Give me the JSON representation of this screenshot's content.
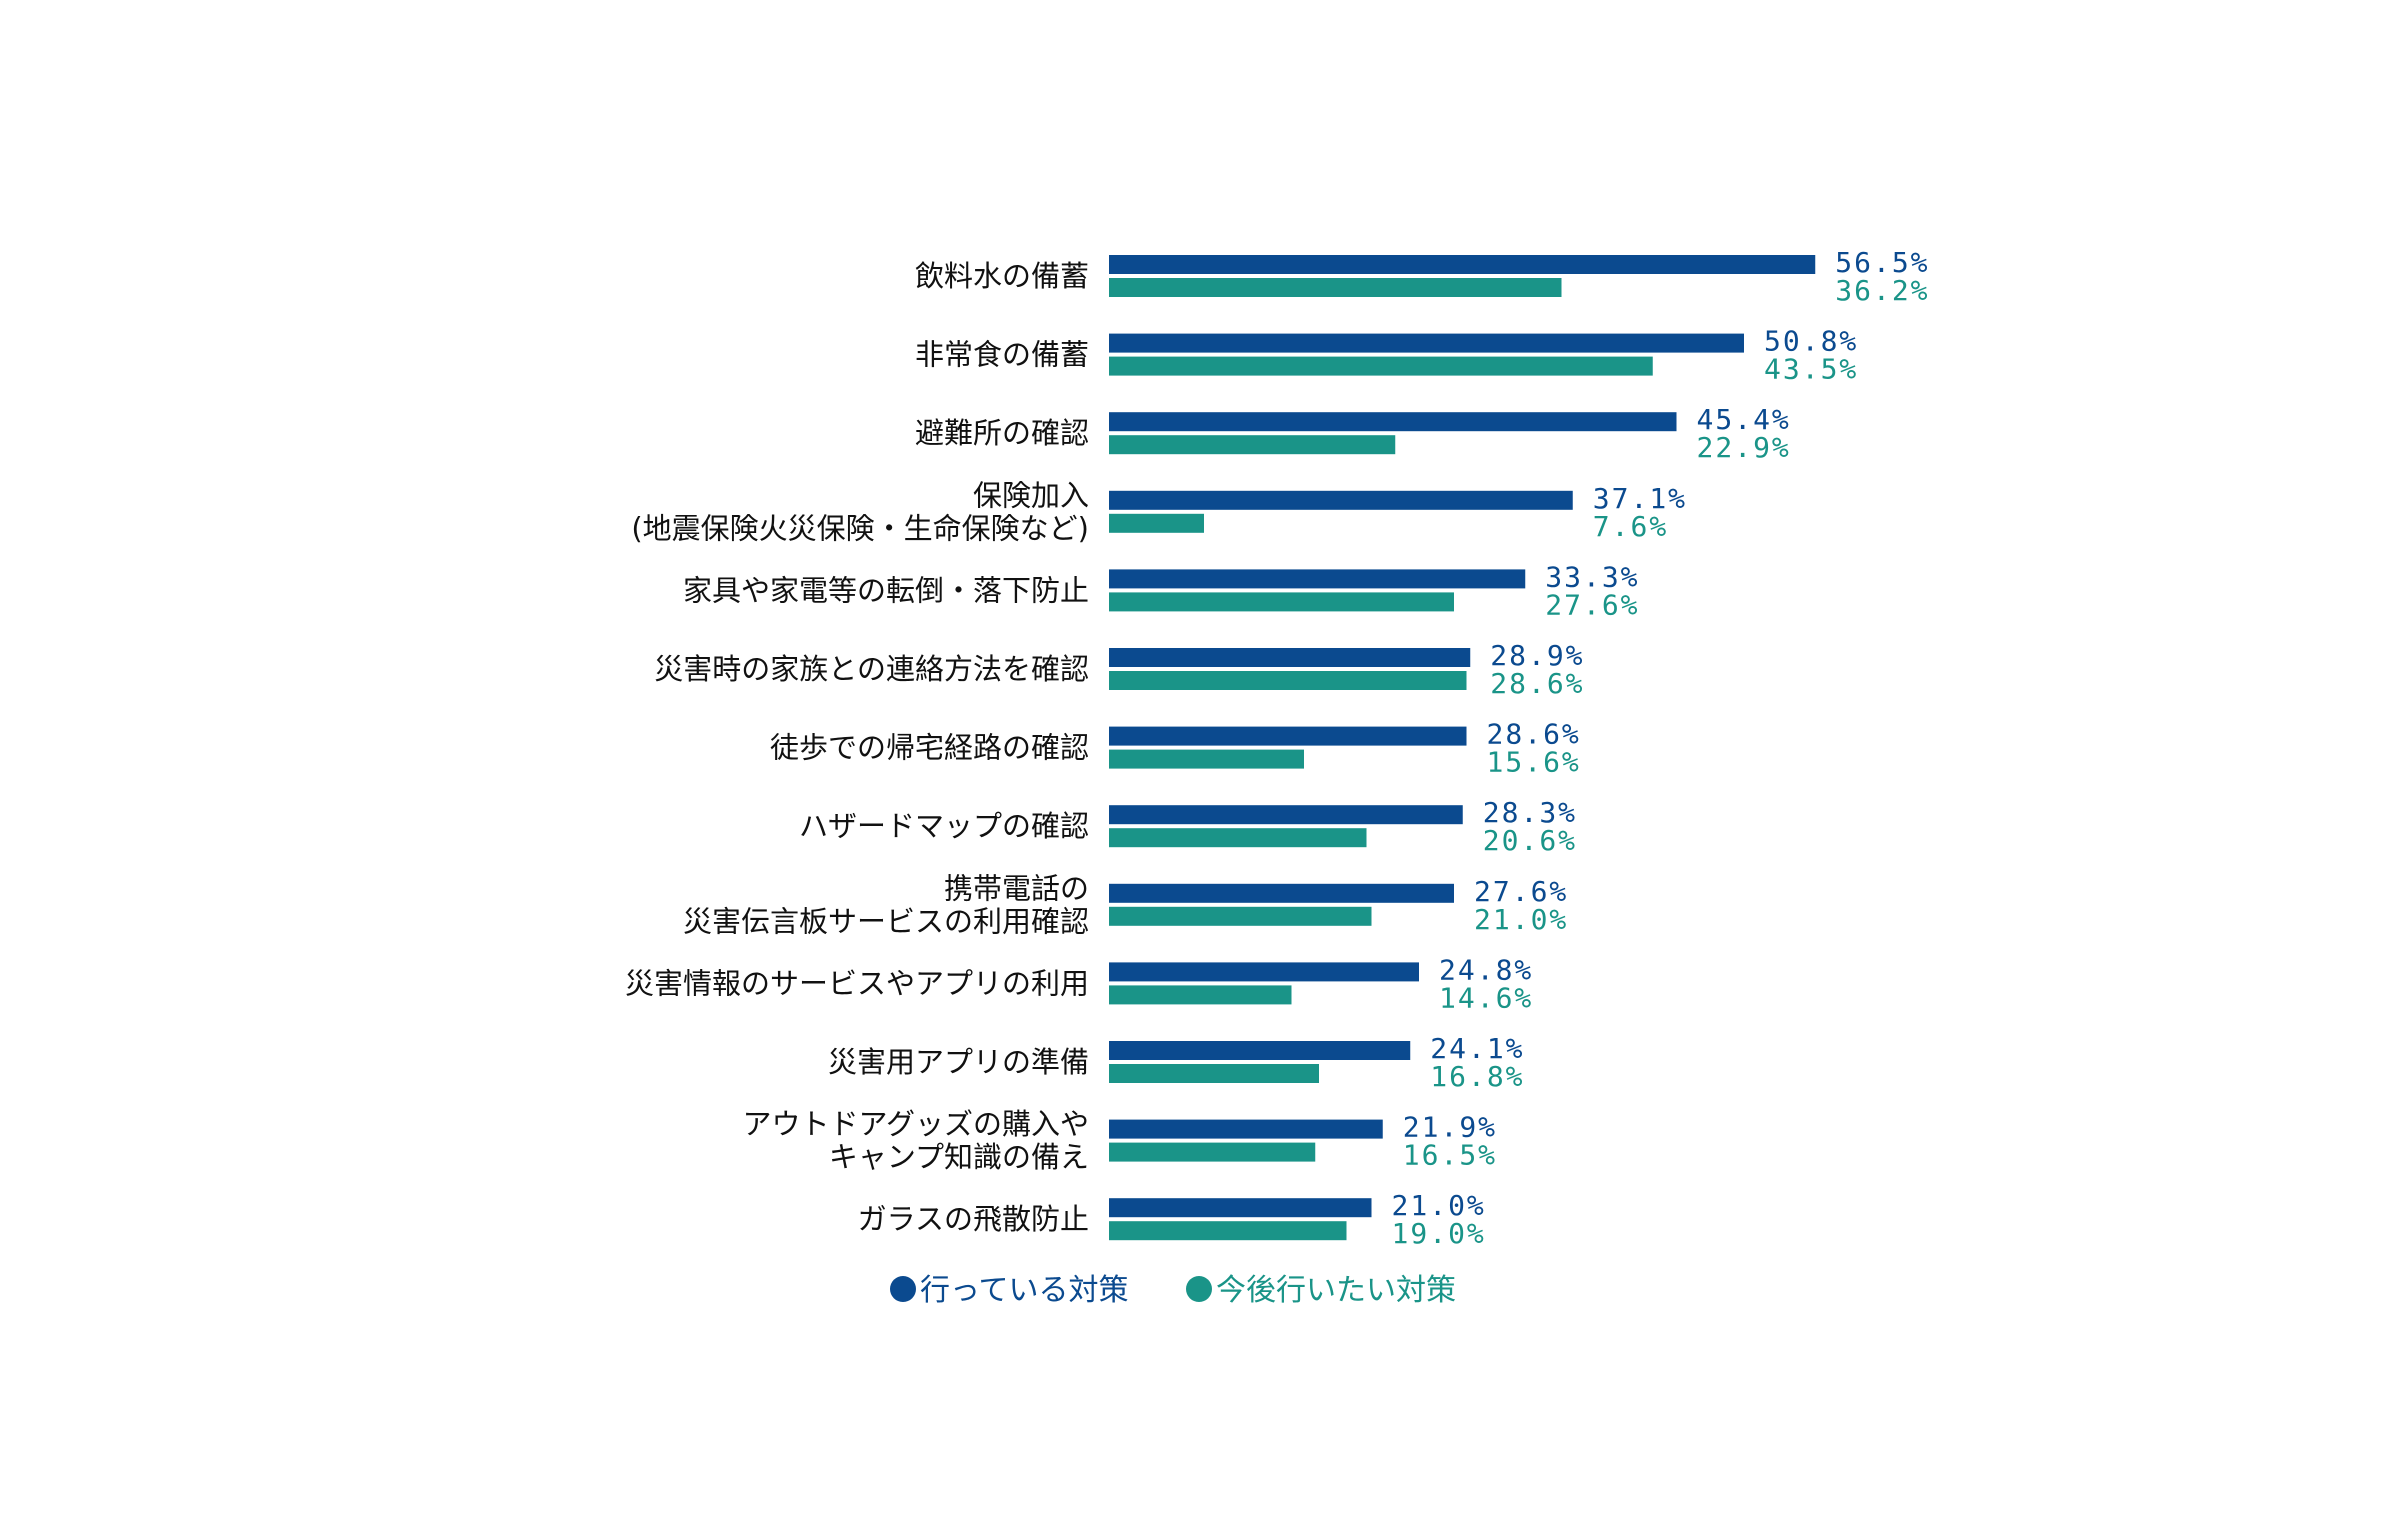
{
  "chart_data": {
    "type": "bar",
    "orientation": "horizontal",
    "categories": [
      [
        "飲料水の備蓄"
      ],
      [
        "非常食の備蓄"
      ],
      [
        "避難所の確認"
      ],
      [
        "保険加入",
        "(地震保険火災保険・生命保険など)"
      ],
      [
        "家具や家電等の転倒・落下防止"
      ],
      [
        "災害時の家族との連絡方法を確認"
      ],
      [
        "徒歩での帰宅経路の確認"
      ],
      [
        "ハザードマップの確認"
      ],
      [
        "携帯電話の",
        "災害伝言板サービスの利用確認"
      ],
      [
        "災害情報のサービスやアプリの利用"
      ],
      [
        "災害用アプリの準備"
      ],
      [
        "アウトドアグッズの購入や",
        "キャンプ知識の備え"
      ],
      [
        "ガラスの飛散防止"
      ]
    ],
    "series": [
      {
        "name": "行っている対策",
        "color": "#0b4a8f",
        "values": [
          56.5,
          50.8,
          45.4,
          37.1,
          33.3,
          28.9,
          28.6,
          28.3,
          27.6,
          24.8,
          24.1,
          21.9,
          21.0
        ],
        "labels": [
          "56.5%",
          "50.8%",
          "45.4%",
          "37.1%",
          "33.3%",
          "28.9%",
          "28.6%",
          "28.3%",
          "27.6%",
          "24.8%",
          "24.1%",
          "21.9%",
          "21.0%"
        ]
      },
      {
        "name": "今後行いたい対策",
        "color": "#1a9488",
        "values": [
          36.2,
          43.5,
          22.9,
          7.6,
          27.6,
          28.6,
          15.6,
          20.6,
          21.0,
          14.6,
          16.8,
          16.5,
          19.0
        ],
        "labels": [
          "36.2%",
          "43.5%",
          "22.9%",
          "7.6%",
          "27.6%",
          "28.6%",
          "15.6%",
          "20.6%",
          "21.0%",
          "14.6%",
          "16.8%",
          "16.5%",
          "19.0%"
        ]
      }
    ],
    "unit": "%",
    "xlim": [
      0,
      100
    ],
    "grid": false,
    "legend": {
      "position": "bottom-center",
      "marker": "●"
    }
  }
}
